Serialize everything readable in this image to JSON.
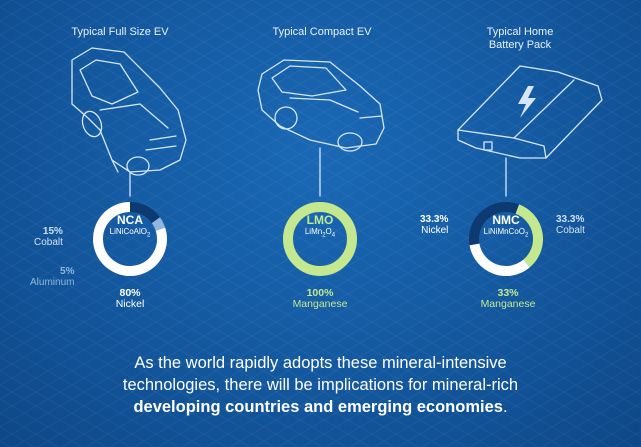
{
  "colors": {
    "background": "#145ba3",
    "ring_white": "#ffffff",
    "ring_dark": "#0d3a70",
    "ring_light_blue": "#8fb6de",
    "ring_green": "#c3e88f",
    "outline": "#d6e6f7"
  },
  "icons": [
    "sedan-car-icon",
    "hatchback-car-icon",
    "battery-pack-icon",
    "lightning-bolt-icon"
  ],
  "panels": [
    {
      "title": "Typical Full Size EV",
      "chemistry": "NCA",
      "formula_base": "LiNiCoAlO",
      "formula_sub": "2",
      "segments": [
        {
          "mineral": "Nickel",
          "pct": 80,
          "pct_label": "80%",
          "color": "#ffffff"
        },
        {
          "mineral": "Cobalt",
          "pct": 15,
          "pct_label": "15%",
          "color": "#0d3a70"
        },
        {
          "mineral": "Aluminum",
          "pct": 5,
          "pct_label": "5%",
          "color": "#8fb6de"
        }
      ]
    },
    {
      "title": "Typical Compact EV",
      "chemistry": "LMO",
      "formula_base": "LiMn",
      "formula_sub": "2",
      "formula_tail": "O",
      "formula_sub2": "4",
      "segments": [
        {
          "mineral": "Manganese",
          "pct": 100,
          "pct_label": "100%",
          "color": "#c3e88f"
        }
      ]
    },
    {
      "title_line1": "Typical Home",
      "title_line2": "Battery Pack",
      "chemistry": "NMC",
      "formula_base": "LiNiMnCoO",
      "formula_sub": "2",
      "segments": [
        {
          "mineral": "Nickel",
          "pct": 33.3,
          "pct_label": "33.3%",
          "color": "#ffffff"
        },
        {
          "mineral": "Cobalt",
          "pct": 33.3,
          "pct_label": "33.3%",
          "color": "#0d3a70"
        },
        {
          "mineral": "Manganese",
          "pct": 33,
          "pct_label": "33%",
          "color": "#c3e88f"
        }
      ]
    }
  ],
  "footer": {
    "line1": "As the world rapidly adopts these mineral-intensive",
    "line2": "technologies, there will be implications for mineral-rich",
    "line3_bold": "developing countries and emerging economies",
    "line3_tail": "."
  }
}
